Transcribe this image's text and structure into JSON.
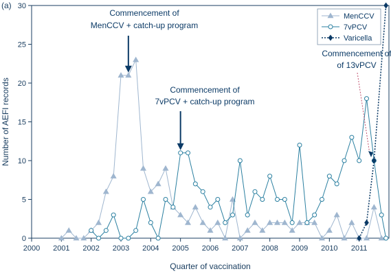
{
  "panel_label": "(a)",
  "chart_data": {
    "type": "line",
    "title": "",
    "xlabel": "Quarter of vaccination",
    "ylabel": "Number of AEFI records",
    "xlim": [
      2000,
      2012
    ],
    "ylim": [
      0,
      30
    ],
    "x_ticks": [
      "2000",
      "2001",
      "2002",
      "2003",
      "2004",
      "2005",
      "2006",
      "2007",
      "2008",
      "2009",
      "2010",
      "2011"
    ],
    "y_ticks": [
      "0",
      "5",
      "10",
      "15",
      "20",
      "25",
      "30"
    ],
    "grid": false,
    "legend_position": "top-right",
    "series": [
      {
        "name": "MenCCV",
        "color": "#9fb6cf",
        "marker": "triangle",
        "line_style": "solid",
        "x": [
          2001.0,
          2001.25,
          2001.5,
          2001.75,
          2002.0,
          2002.25,
          2002.5,
          2002.75,
          2003.0,
          2003.25,
          2003.5,
          2003.75,
          2004.0,
          2004.25,
          2004.5,
          2004.75,
          2005.0,
          2005.25,
          2005.5,
          2005.75,
          2006.0,
          2006.25,
          2006.5,
          2006.75,
          2007.0,
          2007.25,
          2007.5,
          2007.75,
          2008.0,
          2008.25,
          2008.5,
          2008.75,
          2009.0,
          2009.25,
          2009.5,
          2009.75,
          2010.0,
          2010.25,
          2010.5,
          2010.75,
          2011.0,
          2011.25,
          2011.5,
          2011.75
        ],
        "y": [
          0,
          1,
          0,
          0,
          1,
          2,
          6,
          8,
          21,
          21,
          23,
          9,
          6,
          7,
          9,
          4,
          3,
          2,
          4,
          2,
          1,
          2,
          0,
          5,
          0,
          1,
          2,
          1,
          2,
          2,
          2,
          1,
          2,
          2,
          2,
          0,
          1,
          3,
          0,
          2,
          0,
          0,
          4,
          0
        ]
      },
      {
        "name": "7vPCV",
        "color": "#2a7fa0",
        "marker": "circle",
        "line_style": "solid",
        "x": [
          2002.0,
          2002.25,
          2002.5,
          2002.75,
          2003.0,
          2003.25,
          2003.5,
          2003.75,
          2004.0,
          2004.25,
          2004.5,
          2004.75,
          2005.0,
          2005.25,
          2005.5,
          2005.75,
          2006.0,
          2006.25,
          2006.5,
          2006.75,
          2007.0,
          2007.25,
          2007.5,
          2007.75,
          2008.0,
          2008.25,
          2008.5,
          2008.75,
          2009.0,
          2009.25,
          2009.5,
          2009.75,
          2010.0,
          2010.25,
          2010.5,
          2010.75,
          2011.0,
          2011.25,
          2011.5,
          2011.75,
          2011.9
        ],
        "y": [
          1,
          0,
          1,
          3,
          0,
          0,
          1,
          5,
          2,
          0,
          5,
          4,
          11,
          11,
          7,
          6,
          4,
          5,
          2,
          3,
          10,
          3,
          6,
          5,
          8,
          5,
          5,
          2,
          12,
          2,
          3,
          5,
          8,
          7,
          10,
          13,
          10,
          18,
          10,
          3,
          0
        ]
      },
      {
        "name": "Varicella",
        "color": "#0b3a66",
        "marker": "diamond",
        "line_style": "dotted",
        "x": [
          2011.0,
          2011.25,
          2011.5,
          2011.9
        ],
        "y": [
          0,
          2,
          10,
          30
        ]
      }
    ],
    "annotations": [
      {
        "lines": [
          "Commencement of",
          "MenCCV + catch-up program"
        ],
        "x": 2003.25,
        "y": 21,
        "arrow": "solid",
        "color": "#0b3a66"
      },
      {
        "lines": [
          "Commencement of",
          "7vPCV + catch-up program"
        ],
        "x": 2005.0,
        "y": 11,
        "arrow": "solid",
        "color": "#0b3a66"
      },
      {
        "lines": [
          "Commencement of",
          "of 13vPCV"
        ],
        "x": 2011.4,
        "y": 10,
        "arrow": "dotted",
        "color": "#c0506e"
      }
    ]
  }
}
